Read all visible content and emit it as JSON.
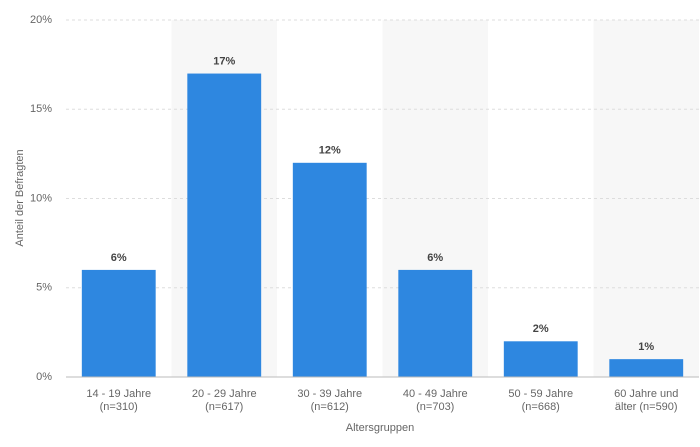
{
  "chart_data": {
    "type": "bar",
    "x_label": "Altersgruppen",
    "y_label": "Anteil der Befragten",
    "categories": [
      "14 - 19 Jahre\n(n=310)",
      "20 - 29 Jahre\n(n=617)",
      "30 - 39 Jahre\n(n=612)",
      "40 - 49 Jahre\n(n=703)",
      "50 - 59 Jahre\n(n=668)",
      "60 Jahre und\nälter (n=590)"
    ],
    "values": [
      6,
      17,
      12,
      6,
      2,
      1
    ],
    "value_labels": [
      "6%",
      "17%",
      "12%",
      "6%",
      "2%",
      "1%"
    ],
    "color": "#2e87e0",
    "ylim": [
      0,
      20
    ],
    "yticks": [
      {
        "value": 0,
        "label": "0%"
      },
      {
        "value": 5,
        "label": "5%"
      },
      {
        "value": 10,
        "label": "10%"
      },
      {
        "value": 15,
        "label": "15%"
      },
      {
        "value": 20,
        "label": "20%"
      }
    ],
    "grid": true
  }
}
